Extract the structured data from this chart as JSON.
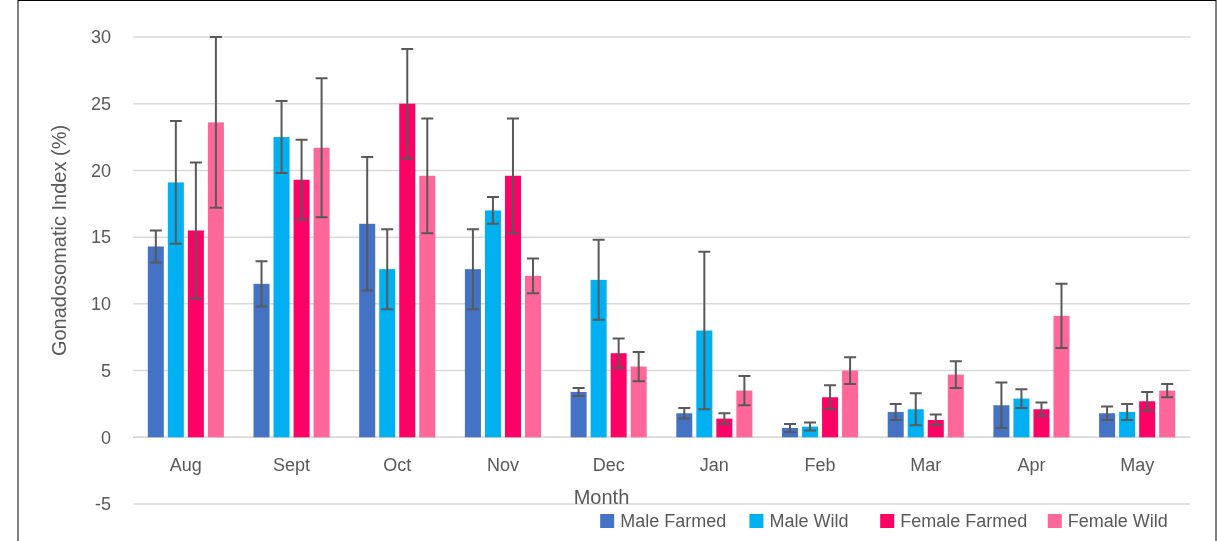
{
  "chart_data": {
    "type": "bar",
    "xlabel": "Month",
    "ylabel": "Gonadosomatic Index (%)",
    "categories": [
      "Aug",
      "Sept",
      "Oct",
      "Nov",
      "Dec",
      "Jan",
      "Feb",
      "Mar",
      "Apr",
      "May"
    ],
    "series": [
      {
        "name": "Male Farmed",
        "color": "#4472c4",
        "values": [
          14.3,
          11.5,
          16.0,
          12.6,
          3.4,
          1.8,
          0.7,
          1.9,
          2.4,
          1.8
        ],
        "errors": [
          1.2,
          1.7,
          5.0,
          3.0,
          0.3,
          0.4,
          0.3,
          0.6,
          1.7,
          0.5
        ]
      },
      {
        "name": "Male Wild",
        "color": "#00b0f0",
        "values": [
          19.1,
          22.5,
          12.6,
          17.0,
          11.8,
          8.0,
          0.8,
          2.1,
          2.9,
          1.9
        ],
        "errors": [
          4.6,
          2.7,
          3.0,
          1.0,
          3.0,
          5.9,
          0.3,
          1.2,
          0.7,
          0.6
        ]
      },
      {
        "name": "Female Farmed",
        "color": "#ff0066",
        "values": [
          15.5,
          19.3,
          25.0,
          19.6,
          6.3,
          1.4,
          3.0,
          1.3,
          2.1,
          2.7
        ],
        "errors": [
          5.1,
          3.0,
          4.1,
          4.3,
          1.1,
          0.4,
          0.9,
          0.4,
          0.5,
          0.7
        ]
      },
      {
        "name": "Female Wild",
        "color": "#ff6699",
        "values": [
          23.6,
          21.7,
          19.6,
          12.1,
          5.3,
          3.5,
          5.0,
          4.7,
          9.1,
          3.5
        ],
        "errors": [
          6.4,
          5.2,
          4.3,
          1.3,
          1.1,
          1.1,
          1.0,
          1.0,
          2.4,
          0.5
        ]
      }
    ],
    "ylim": [
      -5,
      30
    ],
    "yticks": [
      -5,
      0,
      5,
      10,
      15,
      20,
      25,
      30
    ],
    "grid": "y",
    "legend": "bottom right"
  }
}
